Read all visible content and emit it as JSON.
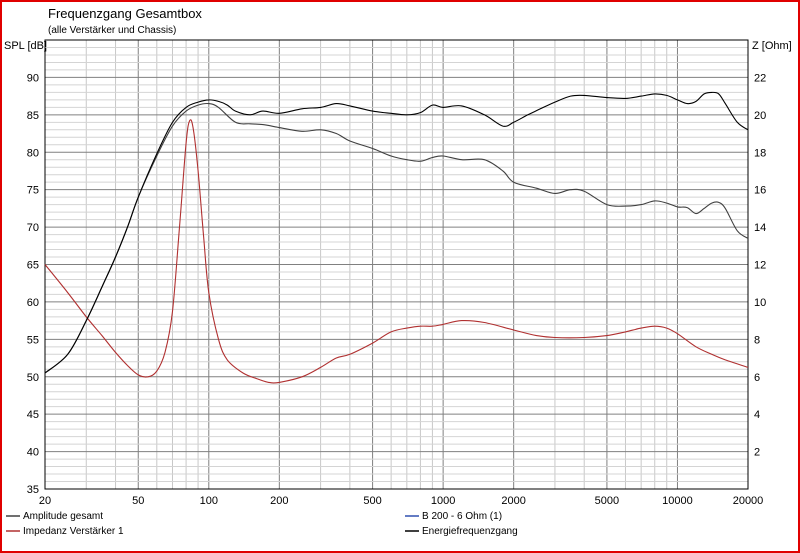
{
  "chart_data": {
    "type": "line",
    "title": "Frequenzgang Gesamtbox",
    "subtitle": "(alle Verstärker und Chassis)",
    "ylabel_left": "SPL [dB]",
    "ylabel_right": "Z [Ohm]",
    "x_scale": "log",
    "xlim": [
      20,
      20000
    ],
    "ylim_left": [
      35,
      95
    ],
    "ylim_right": [
      0,
      24
    ],
    "x_ticks": [
      20,
      50,
      100,
      200,
      500,
      1000,
      2000,
      5000,
      10000,
      20000
    ],
    "x_tick_labels": [
      "20",
      "50",
      "100",
      "200",
      "500",
      "1000",
      "2000",
      "5000",
      "10000",
      "20000"
    ],
    "y_ticks_left": [
      35,
      40,
      45,
      50,
      55,
      60,
      65,
      70,
      75,
      80,
      85,
      90
    ],
    "y_ticks_right": [
      2,
      4,
      6,
      8,
      10,
      12,
      14,
      16,
      18,
      20,
      22
    ],
    "grid": true,
    "legend_position": "bottom",
    "series": [
      {
        "name": "Amplitude gesamt",
        "axis": "left",
        "color": "#404040",
        "x": [
          20,
          25,
          30,
          35,
          40,
          45,
          50,
          60,
          70,
          80,
          90,
          100,
          110,
          130,
          150,
          170,
          200,
          250,
          300,
          350,
          400,
          500,
          600,
          700,
          800,
          900,
          1000,
          1200,
          1500,
          1800,
          2000,
          2500,
          3000,
          3500,
          4000,
          5000,
          6000,
          7000,
          8000,
          9000,
          10000,
          11000,
          12000,
          13000,
          14000,
          15000,
          16000,
          18000,
          20000
        ],
        "y": [
          50.5,
          53,
          57.5,
          62,
          66,
          70,
          74,
          79.5,
          83.5,
          85.5,
          86.3,
          86.5,
          86,
          84,
          83.8,
          83.7,
          83.3,
          82.8,
          83,
          82.5,
          81.5,
          80.5,
          79.5,
          79,
          78.8,
          79.3,
          79.5,
          79,
          79,
          77.5,
          76,
          75.2,
          74.5,
          75,
          74.8,
          73,
          72.8,
          73,
          73.5,
          73.2,
          72.7,
          72.6,
          71.8,
          72.5,
          73.2,
          73.3,
          72.5,
          69.5,
          68.5
        ]
      },
      {
        "name": "Impedanz Verstärker 1",
        "axis": "right",
        "color": "#b03030",
        "x": [
          20,
          25,
          30,
          35,
          40,
          45,
          50,
          55,
          60,
          65,
          70,
          75,
          80,
          83,
          86,
          90,
          95,
          100,
          110,
          120,
          140,
          160,
          180,
          200,
          250,
          300,
          350,
          400,
          500,
          600,
          700,
          800,
          900,
          1000,
          1200,
          1500,
          2000,
          2500,
          3000,
          4000,
          5000,
          6000,
          7000,
          8000,
          9000,
          10000,
          12000,
          14000,
          16000,
          20000
        ],
        "y": [
          12,
          10.5,
          9.2,
          8.2,
          7.3,
          6.6,
          6.1,
          6,
          6.3,
          7.3,
          9.5,
          14,
          18.5,
          19.7,
          19.2,
          17,
          13.5,
          10.5,
          8,
          6.9,
          6.2,
          5.9,
          5.7,
          5.7,
          6,
          6.5,
          7,
          7.2,
          7.8,
          8.4,
          8.6,
          8.7,
          8.7,
          8.8,
          9,
          8.9,
          8.5,
          8.2,
          8.1,
          8.1,
          8.2,
          8.4,
          8.6,
          8.7,
          8.6,
          8.3,
          7.6,
          7.2,
          6.9,
          6.5
        ]
      },
      {
        "name": "B 200 - 6 Ohm (1)",
        "axis": "left",
        "color": "#3050b0",
        "x": [],
        "y": []
      },
      {
        "name": "Energiefrequenzgang",
        "axis": "left",
        "color": "#000000",
        "x": [
          20,
          25,
          30,
          35,
          40,
          45,
          50,
          60,
          70,
          80,
          90,
          100,
          110,
          120,
          130,
          150,
          170,
          200,
          250,
          300,
          350,
          400,
          500,
          600,
          700,
          800,
          900,
          1000,
          1200,
          1500,
          1800,
          2000,
          2300,
          2600,
          3000,
          3500,
          4000,
          5000,
          6000,
          7000,
          8000,
          9000,
          10000,
          11000,
          12000,
          13000,
          14000,
          15000,
          16000,
          18000,
          20000
        ],
        "y": [
          50.5,
          53,
          57.5,
          62,
          66,
          70,
          74,
          79.8,
          84,
          86,
          86.7,
          87,
          86.8,
          86.3,
          85.5,
          85,
          85.5,
          85.2,
          85.8,
          86,
          86.5,
          86.2,
          85.5,
          85.2,
          85,
          85.3,
          86.3,
          86,
          86.2,
          85,
          83.5,
          84,
          85,
          85.8,
          86.7,
          87.5,
          87.6,
          87.3,
          87.2,
          87.5,
          87.8,
          87.6,
          87,
          86.5,
          86.8,
          87.8,
          88,
          87.8,
          86.5,
          84,
          83
        ]
      }
    ]
  }
}
